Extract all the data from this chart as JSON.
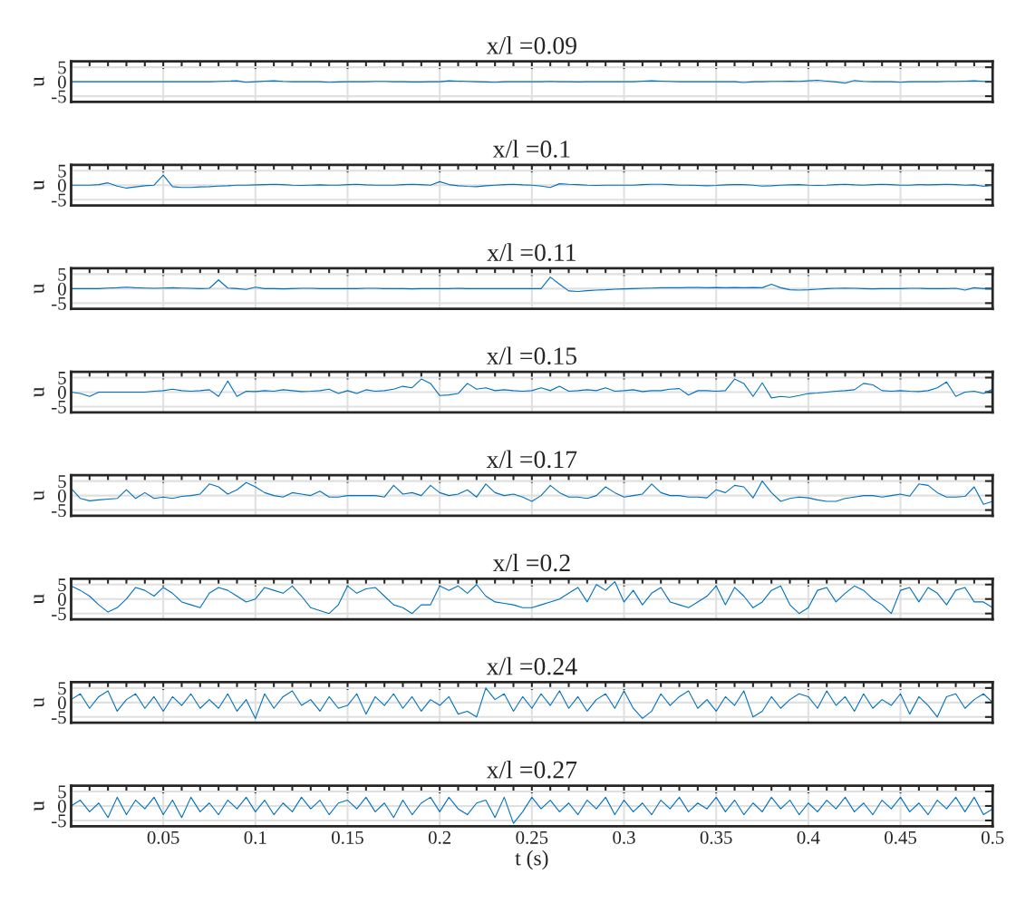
{
  "chart_data": [
    {
      "type": "line",
      "x": [
        0,
        0.005,
        0.01,
        0.015,
        0.02,
        0.025,
        0.03,
        0.035,
        0.04,
        0.045,
        0.05,
        0.055,
        0.06,
        0.065,
        0.07,
        0.075,
        0.08,
        0.085,
        0.09,
        0.095,
        0.1,
        0.105,
        0.11,
        0.115,
        0.12,
        0.125,
        0.13,
        0.135,
        0.14,
        0.145,
        0.15,
        0.155,
        0.16,
        0.165,
        0.17,
        0.175,
        0.18,
        0.185,
        0.19,
        0.195,
        0.2,
        0.205,
        0.21,
        0.215,
        0.22,
        0.225,
        0.23,
        0.235,
        0.24,
        0.245,
        0.25,
        0.255,
        0.26,
        0.265,
        0.27,
        0.275,
        0.28,
        0.285,
        0.29,
        0.295,
        0.3,
        0.305,
        0.31,
        0.315,
        0.32,
        0.325,
        0.33,
        0.335,
        0.34,
        0.345,
        0.35,
        0.355,
        0.36,
        0.365,
        0.37,
        0.375,
        0.38,
        0.385,
        0.39,
        0.395,
        0.4,
        0.405,
        0.41,
        0.415,
        0.42,
        0.425,
        0.43,
        0.435,
        0.44,
        0.445,
        0.45,
        0.455,
        0.46,
        0.465,
        0.47,
        0.475,
        0.48,
        0.485,
        0.49,
        0.495,
        0.5
      ],
      "title": "x/l =0.09",
      "ylabel": "u",
      "xlim": [
        0,
        0.5
      ],
      "ylim": [
        -7,
        7
      ],
      "yticks": [
        -5,
        0,
        5
      ],
      "xticks": [
        0.05,
        0.1,
        0.15,
        0.2,
        0.25,
        0.3,
        0.35,
        0.4,
        0.45,
        0.5
      ],
      "grid": true,
      "tick_labels": "y",
      "series": [
        {
          "color": "#0072bd",
          "values": [
            0,
            0,
            0,
            0,
            0,
            0,
            0,
            0,
            0,
            0,
            0,
            0,
            0,
            0,
            0,
            0,
            0.1,
            0.2,
            0.3,
            -0.2,
            0,
            0.2,
            0.3,
            0.1,
            0,
            0,
            0,
            0,
            -0.2,
            -0.1,
            0,
            0,
            0,
            0.1,
            0.1,
            0,
            0,
            -0.1,
            -0.1,
            0,
            0,
            0.3,
            0.2,
            0.1,
            0,
            -0.1,
            -0.2,
            0,
            0,
            0,
            0,
            0,
            0.1,
            0,
            0,
            -0.1,
            0,
            0,
            0,
            0,
            0,
            0,
            0.2,
            0.3,
            0.2,
            0.1,
            0,
            0,
            0,
            0,
            0,
            0,
            0,
            -0.3,
            0,
            0,
            0.1,
            0.1,
            0.2,
            0.1,
            0.3,
            0.5,
            0.2,
            -0.1,
            -0.5,
            0.4,
            0.1,
            0,
            0,
            0,
            -0.2,
            0,
            0,
            0,
            0,
            0.1,
            0.1,
            0.2,
            0.3,
            0.1,
            0.2
          ]
        }
      ]
    },
    {
      "type": "line",
      "x": [
        0,
        0.005,
        0.01,
        0.015,
        0.02,
        0.025,
        0.03,
        0.035,
        0.04,
        0.045,
        0.05,
        0.055,
        0.06,
        0.065,
        0.07,
        0.075,
        0.08,
        0.085,
        0.09,
        0.095,
        0.1,
        0.105,
        0.11,
        0.115,
        0.12,
        0.125,
        0.13,
        0.135,
        0.14,
        0.145,
        0.15,
        0.155,
        0.16,
        0.165,
        0.17,
        0.175,
        0.18,
        0.185,
        0.19,
        0.195,
        0.2,
        0.205,
        0.21,
        0.215,
        0.22,
        0.225,
        0.23,
        0.235,
        0.24,
        0.245,
        0.25,
        0.255,
        0.26,
        0.265,
        0.27,
        0.275,
        0.28,
        0.285,
        0.29,
        0.295,
        0.3,
        0.305,
        0.31,
        0.315,
        0.32,
        0.325,
        0.33,
        0.335,
        0.34,
        0.345,
        0.35,
        0.355,
        0.36,
        0.365,
        0.37,
        0.375,
        0.38,
        0.385,
        0.39,
        0.395,
        0.4,
        0.405,
        0.41,
        0.415,
        0.42,
        0.425,
        0.43,
        0.435,
        0.44,
        0.445,
        0.45,
        0.455,
        0.46,
        0.465,
        0.47,
        0.475,
        0.48,
        0.485,
        0.49,
        0.495,
        0.5
      ],
      "title": "x/l =0.1",
      "ylabel": "u",
      "xlim": [
        0,
        0.5
      ],
      "ylim": [
        -7,
        7
      ],
      "yticks": [
        -5,
        0,
        5
      ],
      "xticks": [
        0.05,
        0.1,
        0.15,
        0.2,
        0.25,
        0.3,
        0.35,
        0.4,
        0.45,
        0.5
      ],
      "grid": true,
      "tick_labels": "y",
      "series": [
        {
          "color": "#0072bd",
          "values": [
            0,
            0,
            0,
            0.2,
            0.8,
            -0.3,
            -1,
            -0.6,
            -0.2,
            0,
            3.5,
            -0.5,
            -0.8,
            -0.8,
            -0.6,
            -0.5,
            -0.3,
            -0.2,
            0,
            0,
            0.1,
            0.2,
            0.3,
            0.2,
            0,
            -0.1,
            0,
            0.1,
            0,
            0,
            0.2,
            0.3,
            0.1,
            0,
            0,
            0,
            0.2,
            0.3,
            0.2,
            0,
            1.2,
            0.2,
            -0.2,
            -0.4,
            -0.5,
            -0.2,
            0,
            0.2,
            0.3,
            0.1,
            0,
            -0.3,
            -0.8,
            0.5,
            0.3,
            0.2,
            0,
            -0.1,
            0,
            0,
            0,
            0,
            0.2,
            0.3,
            0.3,
            0.2,
            0,
            0,
            -0.1,
            -0.2,
            -0.1,
            0.1,
            0.2,
            0.2,
            0,
            -0.3,
            -0.2,
            0,
            0.1,
            0.2,
            0,
            -0.1,
            0,
            0.2,
            0.3,
            0.1,
            0,
            0.2,
            0.3,
            0.2,
            0,
            0,
            0.2,
            0.1,
            0.2,
            0.3,
            0.2,
            0,
            0.1,
            -0.4,
            0
          ]
        }
      ]
    },
    {
      "type": "line",
      "x": [
        0,
        0.005,
        0.01,
        0.015,
        0.02,
        0.025,
        0.03,
        0.035,
        0.04,
        0.045,
        0.05,
        0.055,
        0.06,
        0.065,
        0.07,
        0.075,
        0.08,
        0.085,
        0.09,
        0.095,
        0.1,
        0.105,
        0.11,
        0.115,
        0.12,
        0.125,
        0.13,
        0.135,
        0.14,
        0.145,
        0.15,
        0.155,
        0.16,
        0.165,
        0.17,
        0.175,
        0.18,
        0.185,
        0.19,
        0.195,
        0.2,
        0.205,
        0.21,
        0.215,
        0.22,
        0.225,
        0.23,
        0.235,
        0.24,
        0.245,
        0.25,
        0.255,
        0.26,
        0.265,
        0.27,
        0.275,
        0.28,
        0.285,
        0.29,
        0.295,
        0.3,
        0.305,
        0.31,
        0.315,
        0.32,
        0.325,
        0.33,
        0.335,
        0.34,
        0.345,
        0.35,
        0.355,
        0.36,
        0.365,
        0.37,
        0.375,
        0.38,
        0.385,
        0.39,
        0.395,
        0.4,
        0.405,
        0.41,
        0.415,
        0.42,
        0.425,
        0.43,
        0.435,
        0.44,
        0.445,
        0.45,
        0.455,
        0.46,
        0.465,
        0.47,
        0.475,
        0.48,
        0.485,
        0.49,
        0.495,
        0.5
      ],
      "title": "x/l =0.11",
      "ylabel": "u",
      "xlim": [
        0,
        0.5
      ],
      "ylim": [
        -7,
        7
      ],
      "yticks": [
        -5,
        0,
        5
      ],
      "xticks": [
        0.05,
        0.1,
        0.15,
        0.2,
        0.25,
        0.3,
        0.35,
        0.4,
        0.45,
        0.5
      ],
      "grid": true,
      "tick_labels": "y",
      "series": [
        {
          "color": "#0072bd",
          "values": [
            0,
            0,
            0,
            0,
            0.2,
            0.3,
            0.5,
            0.3,
            0.2,
            0.1,
            0.2,
            0.3,
            0.2,
            0.1,
            0,
            0.1,
            3,
            0.2,
            0,
            -0.3,
            0.5,
            0,
            0,
            -0.1,
            0,
            0.1,
            0.1,
            0,
            0,
            0,
            0,
            0,
            0.1,
            0.1,
            0,
            0,
            0,
            -0.1,
            0,
            0,
            0,
            0,
            0.1,
            0,
            0,
            0,
            0,
            0,
            0,
            0,
            0,
            0,
            4,
            1.5,
            -0.8,
            -1,
            -0.7,
            -0.5,
            -0.4,
            -0.2,
            -0.1,
            0,
            0.1,
            0.2,
            0.3,
            0.3,
            0.3,
            0.4,
            0.4,
            0.3,
            0.4,
            0.3,
            0.4,
            0.3,
            0.4,
            0.3,
            1.5,
            0.3,
            -0.4,
            -0.5,
            -0.4,
            -0.2,
            0,
            0.1,
            0.2,
            0.1,
            0,
            -0.1,
            0,
            0,
            0,
            0.1,
            0.1,
            0,
            0,
            0,
            0.1,
            -0.5,
            0.3,
            0,
            0
          ]
        }
      ]
    },
    {
      "type": "line",
      "x": [
        0,
        0.005,
        0.01,
        0.015,
        0.02,
        0.025,
        0.03,
        0.035,
        0.04,
        0.045,
        0.05,
        0.055,
        0.06,
        0.065,
        0.07,
        0.075,
        0.08,
        0.085,
        0.09,
        0.095,
        0.1,
        0.105,
        0.11,
        0.115,
        0.12,
        0.125,
        0.13,
        0.135,
        0.14,
        0.145,
        0.15,
        0.155,
        0.16,
        0.165,
        0.17,
        0.175,
        0.18,
        0.185,
        0.19,
        0.195,
        0.2,
        0.205,
        0.21,
        0.215,
        0.22,
        0.225,
        0.23,
        0.235,
        0.24,
        0.245,
        0.25,
        0.255,
        0.26,
        0.265,
        0.27,
        0.275,
        0.28,
        0.285,
        0.29,
        0.295,
        0.3,
        0.305,
        0.31,
        0.315,
        0.32,
        0.325,
        0.33,
        0.335,
        0.34,
        0.345,
        0.35,
        0.355,
        0.36,
        0.365,
        0.37,
        0.375,
        0.38,
        0.385,
        0.39,
        0.395,
        0.4,
        0.405,
        0.41,
        0.415,
        0.42,
        0.425,
        0.43,
        0.435,
        0.44,
        0.445,
        0.45,
        0.455,
        0.46,
        0.465,
        0.47,
        0.475,
        0.48,
        0.485,
        0.49,
        0.495,
        0.5
      ],
      "title": "x/l =0.15",
      "ylabel": "u",
      "xlim": [
        0,
        0.5
      ],
      "ylim": [
        -7,
        7
      ],
      "yticks": [
        -5,
        0,
        5
      ],
      "xticks": [
        0.05,
        0.1,
        0.15,
        0.2,
        0.25,
        0.3,
        0.35,
        0.4,
        0.45,
        0.5
      ],
      "grid": true,
      "tick_labels": "y",
      "series": [
        {
          "color": "#0072bd",
          "values": [
            0,
            -0.5,
            -1.5,
            0,
            0,
            0,
            0,
            0,
            0,
            0.3,
            0.5,
            1,
            0.5,
            0.3,
            0.5,
            0.8,
            -1.5,
            3.8,
            -1.5,
            0.3,
            0.2,
            0.5,
            0.3,
            0.8,
            0.5,
            0.2,
            0.3,
            0.5,
            1,
            -0.5,
            0.5,
            -0.5,
            0.8,
            0.3,
            0.5,
            1,
            2,
            1.5,
            4.5,
            3,
            -1.2,
            -1,
            -0.5,
            3,
            1,
            1.5,
            0.5,
            0.8,
            0.5,
            0.3,
            0.5,
            1.5,
            0.5,
            2,
            0.3,
            0.5,
            0.8,
            0.5,
            1.5,
            0.3,
            0.5,
            0.8,
            0.2,
            0.5,
            0.5,
            1,
            1.2,
            -1,
            0.5,
            0.5,
            0.3,
            0.5,
            4.5,
            3,
            -1.5,
            3.2,
            -2,
            -1.5,
            -1.8,
            -1.2,
            -0.5,
            -0.3,
            0,
            0.3,
            0.5,
            0.8,
            3,
            2.5,
            0.5,
            0.3,
            0.5,
            0.3,
            0.2,
            0.5,
            1.5,
            3.5,
            -1.5,
            0,
            0.3,
            -0.5,
            1
          ]
        }
      ]
    },
    {
      "type": "line",
      "x": [
        0,
        0.005,
        0.01,
        0.015,
        0.02,
        0.025,
        0.03,
        0.035,
        0.04,
        0.045,
        0.05,
        0.055,
        0.06,
        0.065,
        0.07,
        0.075,
        0.08,
        0.085,
        0.09,
        0.095,
        0.1,
        0.105,
        0.11,
        0.115,
        0.12,
        0.125,
        0.13,
        0.135,
        0.14,
        0.145,
        0.15,
        0.155,
        0.16,
        0.165,
        0.17,
        0.175,
        0.18,
        0.185,
        0.19,
        0.195,
        0.2,
        0.205,
        0.21,
        0.215,
        0.22,
        0.225,
        0.23,
        0.235,
        0.24,
        0.245,
        0.25,
        0.255,
        0.26,
        0.265,
        0.27,
        0.275,
        0.28,
        0.285,
        0.29,
        0.295,
        0.3,
        0.305,
        0.31,
        0.315,
        0.32,
        0.325,
        0.33,
        0.335,
        0.34,
        0.345,
        0.35,
        0.355,
        0.36,
        0.365,
        0.37,
        0.375,
        0.38,
        0.385,
        0.39,
        0.395,
        0.4,
        0.405,
        0.41,
        0.415,
        0.42,
        0.425,
        0.43,
        0.435,
        0.44,
        0.445,
        0.45,
        0.455,
        0.46,
        0.465,
        0.47,
        0.475,
        0.48,
        0.485,
        0.49,
        0.495,
        0.5
      ],
      "title": "x/l =0.17",
      "ylabel": "u",
      "xlim": [
        0,
        0.5
      ],
      "ylim": [
        -7,
        7
      ],
      "yticks": [
        -5,
        0,
        5
      ],
      "xticks": [
        0.05,
        0.1,
        0.15,
        0.2,
        0.25,
        0.3,
        0.35,
        0.4,
        0.45,
        0.5
      ],
      "grid": true,
      "tick_labels": "y",
      "series": [
        {
          "color": "#0072bd",
          "values": [
            2.5,
            -1,
            -1.8,
            -1.5,
            -1.2,
            -1,
            2,
            -1,
            1,
            -1,
            -0.5,
            -1,
            -0.3,
            0,
            0.5,
            4,
            3,
            0.5,
            2,
            4.5,
            3,
            1,
            0,
            -0.5,
            1,
            0.5,
            0,
            1.5,
            -0.5,
            -0.5,
            0,
            0,
            0,
            0,
            -0.5,
            3.5,
            0.5,
            1,
            0,
            3.5,
            1,
            0,
            0.5,
            2,
            -0.5,
            4,
            1,
            0,
            0.5,
            -0.5,
            -2,
            0,
            3.5,
            1,
            -0.5,
            -0.5,
            -1,
            0,
            3,
            1,
            -0.5,
            0,
            0.5,
            4,
            1,
            0,
            0,
            -0.5,
            -0.5,
            -0.8,
            2,
            1,
            3.5,
            3,
            -0.8,
            5,
            1,
            -2,
            -1,
            -0.5,
            -0.8,
            -1.5,
            -2,
            -2,
            -1,
            -0.5,
            0,
            0,
            -0.5,
            0,
            0.5,
            -0.2,
            4,
            3.5,
            1,
            -0.5,
            -0.5,
            -0.3,
            3,
            -3,
            -2
          ]
        }
      ]
    },
    {
      "type": "line",
      "x": [
        0,
        0.005,
        0.01,
        0.015,
        0.02,
        0.025,
        0.03,
        0.035,
        0.04,
        0.045,
        0.05,
        0.055,
        0.06,
        0.065,
        0.07,
        0.075,
        0.08,
        0.085,
        0.09,
        0.095,
        0.1,
        0.105,
        0.11,
        0.115,
        0.12,
        0.125,
        0.13,
        0.135,
        0.14,
        0.145,
        0.15,
        0.155,
        0.16,
        0.165,
        0.17,
        0.175,
        0.18,
        0.185,
        0.19,
        0.195,
        0.2,
        0.205,
        0.21,
        0.215,
        0.22,
        0.225,
        0.23,
        0.235,
        0.24,
        0.245,
        0.25,
        0.255,
        0.26,
        0.265,
        0.27,
        0.275,
        0.28,
        0.285,
        0.29,
        0.295,
        0.3,
        0.305,
        0.31,
        0.315,
        0.32,
        0.325,
        0.33,
        0.335,
        0.34,
        0.345,
        0.35,
        0.355,
        0.36,
        0.365,
        0.37,
        0.375,
        0.38,
        0.385,
        0.39,
        0.395,
        0.4,
        0.405,
        0.41,
        0.415,
        0.42,
        0.425,
        0.43,
        0.435,
        0.44,
        0.445,
        0.45,
        0.455,
        0.46,
        0.465,
        0.47,
        0.475,
        0.48,
        0.485,
        0.49,
        0.495,
        0.5
      ],
      "title": "x/l =0.2",
      "ylabel": "u",
      "xlim": [
        0,
        0.5
      ],
      "ylim": [
        -7,
        7
      ],
      "yticks": [
        -5,
        0,
        5
      ],
      "xticks": [
        0.05,
        0.1,
        0.15,
        0.2,
        0.25,
        0.3,
        0.35,
        0.4,
        0.45,
        0.5
      ],
      "grid": true,
      "tick_labels": "y",
      "series": [
        {
          "color": "#0072bd",
          "values": [
            4.5,
            3,
            1,
            -2,
            -4.5,
            -3,
            0,
            4,
            3,
            1,
            4,
            2,
            -1,
            -2,
            -3,
            2,
            4,
            3,
            1,
            -1,
            0,
            4,
            3,
            2,
            4.5,
            1,
            -3,
            -4,
            -5,
            -2,
            4.5,
            2,
            3.5,
            4,
            1,
            -2,
            -3,
            -5,
            -2,
            -2,
            4.5,
            3,
            4.5,
            2,
            5,
            1,
            -1,
            -1.5,
            -2,
            -3,
            -3,
            -2,
            -1,
            0,
            2,
            4,
            -1,
            5,
            3,
            6,
            -1,
            3,
            -2,
            2,
            4,
            -1,
            -2,
            -3,
            -1,
            1,
            4.5,
            -2,
            4,
            1,
            -3,
            -1,
            3,
            4.5,
            -2,
            -5,
            -3,
            3,
            4,
            -1,
            2,
            4.5,
            3,
            0,
            -2,
            -5,
            3,
            4,
            -1,
            4,
            2,
            -2,
            3,
            4,
            -1,
            -1,
            -3
          ]
        }
      ]
    },
    {
      "type": "line",
      "x": [
        0,
        0.005,
        0.01,
        0.015,
        0.02,
        0.025,
        0.03,
        0.035,
        0.04,
        0.045,
        0.05,
        0.055,
        0.06,
        0.065,
        0.07,
        0.075,
        0.08,
        0.085,
        0.09,
        0.095,
        0.1,
        0.105,
        0.11,
        0.115,
        0.12,
        0.125,
        0.13,
        0.135,
        0.14,
        0.145,
        0.15,
        0.155,
        0.16,
        0.165,
        0.17,
        0.175,
        0.18,
        0.185,
        0.19,
        0.195,
        0.2,
        0.205,
        0.21,
        0.215,
        0.22,
        0.225,
        0.23,
        0.235,
        0.24,
        0.245,
        0.25,
        0.255,
        0.26,
        0.265,
        0.27,
        0.275,
        0.28,
        0.285,
        0.29,
        0.295,
        0.3,
        0.305,
        0.31,
        0.315,
        0.32,
        0.325,
        0.33,
        0.335,
        0.34,
        0.345,
        0.35,
        0.355,
        0.36,
        0.365,
        0.37,
        0.375,
        0.38,
        0.385,
        0.39,
        0.395,
        0.4,
        0.405,
        0.41,
        0.415,
        0.42,
        0.425,
        0.43,
        0.435,
        0.44,
        0.445,
        0.45,
        0.455,
        0.46,
        0.465,
        0.47,
        0.475,
        0.48,
        0.485,
        0.49,
        0.495,
        0.5
      ],
      "title": "x/l =0.24",
      "ylabel": "u",
      "xlim": [
        0,
        0.5
      ],
      "ylim": [
        -7,
        7
      ],
      "yticks": [
        -5,
        0,
        5
      ],
      "xticks": [
        0.05,
        0.1,
        0.15,
        0.2,
        0.25,
        0.3,
        0.35,
        0.4,
        0.45,
        0.5
      ],
      "grid": true,
      "tick_labels": "y",
      "series": [
        {
          "color": "#0072bd",
          "values": [
            1,
            3,
            -2,
            2,
            4,
            -3,
            1,
            3,
            -2,
            2,
            -3,
            2,
            -1,
            3,
            -2,
            1,
            -2,
            3,
            -3,
            1,
            -5.5,
            3,
            -2,
            2,
            4,
            -1,
            1,
            -3,
            2,
            -2,
            -1,
            3,
            -4,
            2,
            -1,
            3,
            -2,
            2,
            -3,
            1,
            -1,
            2,
            -4,
            -3,
            -5,
            5,
            1,
            3,
            -3,
            2,
            -2,
            3,
            -1,
            4,
            -2,
            2,
            -3,
            1,
            3,
            -2,
            4,
            -2,
            -5.5,
            -3,
            3,
            -1,
            2,
            4,
            -2,
            1,
            -3,
            2,
            -1,
            4,
            -5,
            -3,
            2,
            -2,
            1,
            3,
            2,
            -2,
            4,
            -1,
            2,
            -3,
            3,
            -2,
            1,
            -1,
            3,
            -4,
            2,
            -1,
            -5,
            2,
            3,
            -2,
            1,
            3,
            0
          ]
        }
      ]
    },
    {
      "type": "line",
      "x": [
        0,
        0.005,
        0.01,
        0.015,
        0.02,
        0.025,
        0.03,
        0.035,
        0.04,
        0.045,
        0.05,
        0.055,
        0.06,
        0.065,
        0.07,
        0.075,
        0.08,
        0.085,
        0.09,
        0.095,
        0.1,
        0.105,
        0.11,
        0.115,
        0.12,
        0.125,
        0.13,
        0.135,
        0.14,
        0.145,
        0.15,
        0.155,
        0.16,
        0.165,
        0.17,
        0.175,
        0.18,
        0.185,
        0.19,
        0.195,
        0.2,
        0.205,
        0.21,
        0.215,
        0.22,
        0.225,
        0.23,
        0.235,
        0.24,
        0.245,
        0.25,
        0.255,
        0.26,
        0.265,
        0.27,
        0.275,
        0.28,
        0.285,
        0.29,
        0.295,
        0.3,
        0.305,
        0.31,
        0.315,
        0.32,
        0.325,
        0.33,
        0.335,
        0.34,
        0.345,
        0.35,
        0.355,
        0.36,
        0.365,
        0.37,
        0.375,
        0.38,
        0.385,
        0.39,
        0.395,
        0.4,
        0.405,
        0.41,
        0.415,
        0.42,
        0.425,
        0.43,
        0.435,
        0.44,
        0.445,
        0.45,
        0.455,
        0.46,
        0.465,
        0.47,
        0.475,
        0.48,
        0.485,
        0.49,
        0.495,
        0.5
      ],
      "title": "x/l =0.27",
      "xlabel": "t (s)",
      "ylabel": "u",
      "xlim": [
        0,
        0.5
      ],
      "ylim": [
        -7,
        7
      ],
      "yticks": [
        -5,
        0,
        5
      ],
      "xticks": [
        0.05,
        0.1,
        0.15,
        0.2,
        0.25,
        0.3,
        0.35,
        0.4,
        0.45,
        0.5
      ],
      "grid": true,
      "series": [
        {
          "color": "#0072bd",
          "values": [
            0,
            2,
            -2,
            1,
            -4,
            3,
            -3,
            2,
            -1,
            3,
            -3,
            2,
            -4,
            3,
            -2,
            1,
            -3,
            2,
            -1,
            3,
            -2,
            2,
            -3,
            1,
            -2,
            3,
            -1,
            2,
            -3,
            1,
            2,
            -1,
            3,
            -2,
            1,
            -4,
            2,
            -3,
            1,
            3,
            -2,
            3,
            -1,
            -3,
            1,
            2,
            -4,
            3,
            -6,
            -2,
            3,
            -1,
            2,
            -2,
            1,
            -3,
            2,
            -1,
            3,
            -3,
            2,
            -2,
            1,
            -3,
            2,
            -1,
            3,
            -2,
            1,
            -1,
            3,
            -2,
            2,
            -3,
            1,
            -2,
            3,
            -1,
            2,
            -3,
            1,
            -2,
            2,
            -1,
            3,
            -2,
            1,
            -3,
            2,
            -1,
            3,
            -2,
            1,
            -3,
            2,
            -1,
            3,
            -2,
            3,
            -3,
            -1
          ]
        }
      ]
    }
  ]
}
